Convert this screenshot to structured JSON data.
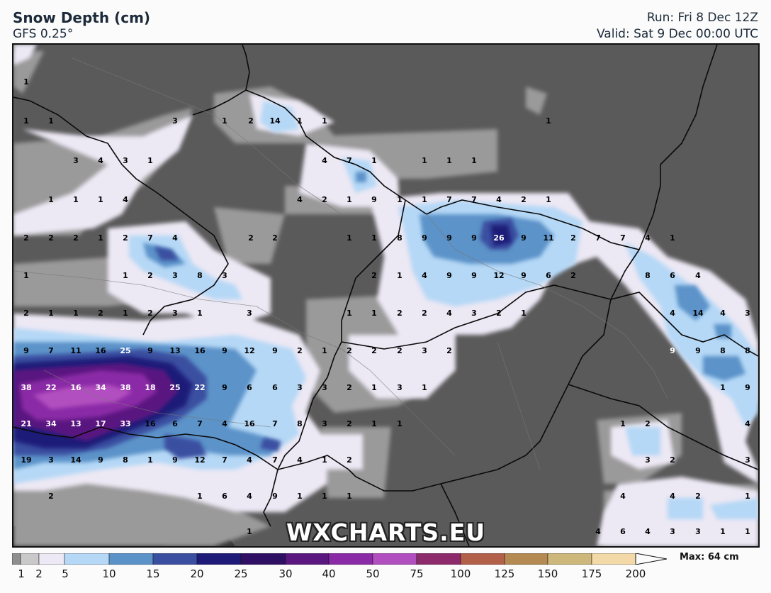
{
  "header": {
    "title": "Snow Depth (cm)",
    "model": "GFS 0.25°",
    "run": "Run: Fri 8 Dec 12Z",
    "valid": "Valid: Sat 9 Dec 00:00 UTC"
  },
  "watermark": "WXCHARTS.EU",
  "legend": {
    "max_label": "Max: 64 cm",
    "ticks": [
      "1",
      "2",
      "5",
      "10",
      "15",
      "20",
      "25",
      "30",
      "40",
      "50",
      "75",
      "100",
      "125",
      "150",
      "175",
      "200"
    ],
    "colors": [
      "#8f8f8f",
      "#c9c9c9",
      "#ece8f4",
      "#b5d8f6",
      "#5b93c9",
      "#3a4fa0",
      "#1d1a78",
      "#2e0f63",
      "#5a1780",
      "#8a2aa6",
      "#b24fc0",
      "#8d2a6b",
      "#b3604a",
      "#b58a52",
      "#cdb77a",
      "#f3d9a8"
    ]
  },
  "palette": {
    "land": "#5a5a5a",
    "sea": "#2b2b2b",
    "border": "#0a0a0a"
  },
  "map_labels": [
    {
      "t": "1",
      "lx": 35,
      "ly": 113
    },
    {
      "t": "1",
      "lx": 35,
      "ly": 168
    },
    {
      "t": "1",
      "lx": 70,
      "ly": 168
    },
    {
      "t": "3",
      "lx": 245,
      "ly": 168
    },
    {
      "t": "1",
      "lx": 315,
      "ly": 168
    },
    {
      "t": "2",
      "lx": 352,
      "ly": 168
    },
    {
      "t": "14",
      "lx": 386,
      "ly": 168
    },
    {
      "t": "1",
      "lx": 421,
      "ly": 168
    },
    {
      "t": "1",
      "lx": 456,
      "ly": 168
    },
    {
      "t": "1",
      "lx": 772,
      "ly": 168
    },
    {
      "t": "3",
      "lx": 105,
      "ly": 224
    },
    {
      "t": "4",
      "lx": 140,
      "ly": 224
    },
    {
      "t": "3",
      "lx": 175,
      "ly": 224
    },
    {
      "t": "1",
      "lx": 210,
      "ly": 224
    },
    {
      "t": "4",
      "lx": 456,
      "ly": 224
    },
    {
      "t": "7",
      "lx": 491,
      "ly": 224
    },
    {
      "t": "1",
      "lx": 526,
      "ly": 224
    },
    {
      "t": "1",
      "lx": 597,
      "ly": 224
    },
    {
      "t": "1",
      "lx": 632,
      "ly": 224
    },
    {
      "t": "1",
      "lx": 667,
      "ly": 224
    },
    {
      "t": "1",
      "lx": 70,
      "ly": 279
    },
    {
      "t": "1",
      "lx": 105,
      "ly": 279
    },
    {
      "t": "1",
      "lx": 140,
      "ly": 279
    },
    {
      "t": "4",
      "lx": 175,
      "ly": 279
    },
    {
      "t": "4",
      "lx": 421,
      "ly": 279
    },
    {
      "t": "2",
      "lx": 456,
      "ly": 279
    },
    {
      "t": "1",
      "lx": 491,
      "ly": 279
    },
    {
      "t": "9",
      "lx": 526,
      "ly": 279
    },
    {
      "t": "1",
      "lx": 562,
      "ly": 279
    },
    {
      "t": "1",
      "lx": 597,
      "ly": 279
    },
    {
      "t": "7",
      "lx": 632,
      "ly": 279
    },
    {
      "t": "7",
      "lx": 667,
      "ly": 279
    },
    {
      "t": "4",
      "lx": 702,
      "ly": 279
    },
    {
      "t": "2",
      "lx": 737,
      "ly": 279
    },
    {
      "t": "1",
      "lx": 772,
      "ly": 279
    },
    {
      "t": "2",
      "lx": 35,
      "ly": 333
    },
    {
      "t": "2",
      "lx": 70,
      "ly": 333
    },
    {
      "t": "2",
      "lx": 105,
      "ly": 333
    },
    {
      "t": "1",
      "lx": 140,
      "ly": 333
    },
    {
      "t": "2",
      "lx": 175,
      "ly": 333
    },
    {
      "t": "7",
      "lx": 210,
      "ly": 333
    },
    {
      "t": "4",
      "lx": 245,
      "ly": 333
    },
    {
      "t": "2",
      "lx": 352,
      "ly": 333
    },
    {
      "t": "2",
      "lx": 386,
      "ly": 333
    },
    {
      "t": "1",
      "lx": 491,
      "ly": 333
    },
    {
      "t": "1",
      "lx": 526,
      "ly": 333
    },
    {
      "t": "8",
      "lx": 562,
      "ly": 333
    },
    {
      "t": "9",
      "lx": 597,
      "ly": 333
    },
    {
      "t": "9",
      "lx": 632,
      "ly": 333
    },
    {
      "t": "9",
      "lx": 667,
      "ly": 333
    },
    {
      "t": "26",
      "lx": 702,
      "ly": 333,
      "w": 1
    },
    {
      "t": "9",
      "lx": 737,
      "ly": 333
    },
    {
      "t": "11",
      "lx": 772,
      "ly": 333
    },
    {
      "t": "2",
      "lx": 807,
      "ly": 333
    },
    {
      "t": "7",
      "lx": 842,
      "ly": 333
    },
    {
      "t": "7",
      "lx": 877,
      "ly": 333
    },
    {
      "t": "4",
      "lx": 912,
      "ly": 333
    },
    {
      "t": "1",
      "lx": 947,
      "ly": 333
    },
    {
      "t": "1",
      "lx": 35,
      "ly": 386
    },
    {
      "t": "1",
      "lx": 175,
      "ly": 386
    },
    {
      "t": "2",
      "lx": 210,
      "ly": 386
    },
    {
      "t": "3",
      "lx": 245,
      "ly": 386
    },
    {
      "t": "8",
      "lx": 280,
      "ly": 386
    },
    {
      "t": "3",
      "lx": 315,
      "ly": 386
    },
    {
      "t": "2",
      "lx": 526,
      "ly": 386
    },
    {
      "t": "1",
      "lx": 562,
      "ly": 386
    },
    {
      "t": "4",
      "lx": 597,
      "ly": 386
    },
    {
      "t": "9",
      "lx": 632,
      "ly": 386
    },
    {
      "t": "9",
      "lx": 667,
      "ly": 386
    },
    {
      "t": "12",
      "lx": 702,
      "ly": 386
    },
    {
      "t": "9",
      "lx": 737,
      "ly": 386
    },
    {
      "t": "6",
      "lx": 772,
      "ly": 386
    },
    {
      "t": "2",
      "lx": 807,
      "ly": 386
    },
    {
      "t": "8",
      "lx": 912,
      "ly": 386
    },
    {
      "t": "6",
      "lx": 947,
      "ly": 386
    },
    {
      "t": "4",
      "lx": 983,
      "ly": 386
    },
    {
      "t": "2",
      "lx": 35,
      "ly": 439
    },
    {
      "t": "1",
      "lx": 70,
      "ly": 439
    },
    {
      "t": "1",
      "lx": 105,
      "ly": 439
    },
    {
      "t": "2",
      "lx": 140,
      "ly": 439
    },
    {
      "t": "1",
      "lx": 175,
      "ly": 439
    },
    {
      "t": "2",
      "lx": 210,
      "ly": 439
    },
    {
      "t": "3",
      "lx": 245,
      "ly": 439
    },
    {
      "t": "1",
      "lx": 280,
      "ly": 439
    },
    {
      "t": "3",
      "lx": 350,
      "ly": 439
    },
    {
      "t": "1",
      "lx": 491,
      "ly": 439
    },
    {
      "t": "1",
      "lx": 526,
      "ly": 439
    },
    {
      "t": "2",
      "lx": 562,
      "ly": 439
    },
    {
      "t": "2",
      "lx": 597,
      "ly": 439
    },
    {
      "t": "4",
      "lx": 632,
      "ly": 439
    },
    {
      "t": "3",
      "lx": 667,
      "ly": 439
    },
    {
      "t": "2",
      "lx": 702,
      "ly": 439
    },
    {
      "t": "1",
      "lx": 737,
      "ly": 439
    },
    {
      "t": "4",
      "lx": 947,
      "ly": 439
    },
    {
      "t": "14",
      "lx": 983,
      "ly": 439
    },
    {
      "t": "4",
      "lx": 1018,
      "ly": 439
    },
    {
      "t": "3",
      "lx": 1053,
      "ly": 439
    },
    {
      "t": "9",
      "lx": 35,
      "ly": 492
    },
    {
      "t": "7",
      "lx": 70,
      "ly": 492
    },
    {
      "t": "11",
      "lx": 105,
      "ly": 492
    },
    {
      "t": "16",
      "lx": 140,
      "ly": 492
    },
    {
      "t": "25",
      "lx": 175,
      "ly": 492,
      "w": 1
    },
    {
      "t": "9",
      "lx": 210,
      "ly": 492
    },
    {
      "t": "13",
      "lx": 245,
      "ly": 492
    },
    {
      "t": "16",
      "lx": 280,
      "ly": 492
    },
    {
      "t": "9",
      "lx": 315,
      "ly": 492
    },
    {
      "t": "12",
      "lx": 350,
      "ly": 492
    },
    {
      "t": "9",
      "lx": 386,
      "ly": 492
    },
    {
      "t": "2",
      "lx": 421,
      "ly": 492
    },
    {
      "t": "1",
      "lx": 456,
      "ly": 492
    },
    {
      "t": "2",
      "lx": 491,
      "ly": 492
    },
    {
      "t": "2",
      "lx": 526,
      "ly": 492
    },
    {
      "t": "2",
      "lx": 562,
      "ly": 492
    },
    {
      "t": "3",
      "lx": 597,
      "ly": 492
    },
    {
      "t": "2",
      "lx": 632,
      "ly": 492
    },
    {
      "t": "9",
      "lx": 947,
      "ly": 492,
      "w": 1
    },
    {
      "t": "9",
      "lx": 983,
      "ly": 492
    },
    {
      "t": "8",
      "lx": 1018,
      "ly": 492
    },
    {
      "t": "8",
      "lx": 1053,
      "ly": 492
    },
    {
      "t": "38",
      "lx": 35,
      "ly": 544,
      "w": 1
    },
    {
      "t": "22",
      "lx": 70,
      "ly": 544,
      "w": 1
    },
    {
      "t": "16",
      "lx": 105,
      "ly": 544,
      "w": 1
    },
    {
      "t": "34",
      "lx": 140,
      "ly": 544,
      "w": 1
    },
    {
      "t": "38",
      "lx": 175,
      "ly": 544,
      "w": 1
    },
    {
      "t": "18",
      "lx": 210,
      "ly": 544,
      "w": 1
    },
    {
      "t": "25",
      "lx": 245,
      "ly": 544,
      "w": 1
    },
    {
      "t": "22",
      "lx": 280,
      "ly": 544,
      "w": 1
    },
    {
      "t": "9",
      "lx": 315,
      "ly": 544
    },
    {
      "t": "6",
      "lx": 350,
      "ly": 544
    },
    {
      "t": "6",
      "lx": 386,
      "ly": 544
    },
    {
      "t": "3",
      "lx": 421,
      "ly": 544
    },
    {
      "t": "3",
      "lx": 456,
      "ly": 544
    },
    {
      "t": "2",
      "lx": 491,
      "ly": 544
    },
    {
      "t": "1",
      "lx": 526,
      "ly": 544
    },
    {
      "t": "3",
      "lx": 562,
      "ly": 544
    },
    {
      "t": "1",
      "lx": 597,
      "ly": 544
    },
    {
      "t": "1",
      "lx": 1018,
      "ly": 544
    },
    {
      "t": "9",
      "lx": 1053,
      "ly": 544
    },
    {
      "t": "21",
      "lx": 35,
      "ly": 595,
      "w": 1
    },
    {
      "t": "34",
      "lx": 70,
      "ly": 595,
      "w": 1
    },
    {
      "t": "13",
      "lx": 105,
      "ly": 595,
      "w": 1
    },
    {
      "t": "17",
      "lx": 140,
      "ly": 595,
      "w": 1
    },
    {
      "t": "33",
      "lx": 175,
      "ly": 595,
      "w": 1
    },
    {
      "t": "16",
      "lx": 210,
      "ly": 595
    },
    {
      "t": "6",
      "lx": 245,
      "ly": 595
    },
    {
      "t": "7",
      "lx": 280,
      "ly": 595
    },
    {
      "t": "4",
      "lx": 315,
      "ly": 595
    },
    {
      "t": "16",
      "lx": 350,
      "ly": 595
    },
    {
      "t": "7",
      "lx": 386,
      "ly": 595
    },
    {
      "t": "8",
      "lx": 421,
      "ly": 595
    },
    {
      "t": "3",
      "lx": 456,
      "ly": 595
    },
    {
      "t": "2",
      "lx": 491,
      "ly": 595
    },
    {
      "t": "1",
      "lx": 526,
      "ly": 595
    },
    {
      "t": "1",
      "lx": 562,
      "ly": 595
    },
    {
      "t": "1",
      "lx": 877,
      "ly": 595
    },
    {
      "t": "2",
      "lx": 912,
      "ly": 595
    },
    {
      "t": "4",
      "lx": 1053,
      "ly": 595
    },
    {
      "t": "19",
      "lx": 35,
      "ly": 646
    },
    {
      "t": "3",
      "lx": 70,
      "ly": 646
    },
    {
      "t": "14",
      "lx": 105,
      "ly": 646
    },
    {
      "t": "9",
      "lx": 140,
      "ly": 646
    },
    {
      "t": "8",
      "lx": 175,
      "ly": 646
    },
    {
      "t": "1",
      "lx": 210,
      "ly": 646
    },
    {
      "t": "9",
      "lx": 245,
      "ly": 646
    },
    {
      "t": "12",
      "lx": 280,
      "ly": 646
    },
    {
      "t": "7",
      "lx": 315,
      "ly": 646
    },
    {
      "t": "4",
      "lx": 350,
      "ly": 646
    },
    {
      "t": "7",
      "lx": 386,
      "ly": 646
    },
    {
      "t": "4",
      "lx": 421,
      "ly": 646
    },
    {
      "t": "1",
      "lx": 456,
      "ly": 646
    },
    {
      "t": "2",
      "lx": 491,
      "ly": 646
    },
    {
      "t": "3",
      "lx": 912,
      "ly": 646
    },
    {
      "t": "2",
      "lx": 947,
      "ly": 646
    },
    {
      "t": "3",
      "lx": 1053,
      "ly": 646
    },
    {
      "t": "2",
      "lx": 70,
      "ly": 697
    },
    {
      "t": "1",
      "lx": 280,
      "ly": 697
    },
    {
      "t": "6",
      "lx": 315,
      "ly": 697
    },
    {
      "t": "4",
      "lx": 350,
      "ly": 697
    },
    {
      "t": "9",
      "lx": 386,
      "ly": 697
    },
    {
      "t": "1",
      "lx": 421,
      "ly": 697
    },
    {
      "t": "1",
      "lx": 456,
      "ly": 697
    },
    {
      "t": "1",
      "lx": 491,
      "ly": 697
    },
    {
      "t": "4",
      "lx": 877,
      "ly": 697
    },
    {
      "t": "4",
      "lx": 947,
      "ly": 697
    },
    {
      "t": "2",
      "lx": 983,
      "ly": 697
    },
    {
      "t": "1",
      "lx": 1053,
      "ly": 697
    },
    {
      "t": "1",
      "lx": 350,
      "ly": 747
    },
    {
      "t": "4",
      "lx": 842,
      "ly": 747
    },
    {
      "t": "6",
      "lx": 877,
      "ly": 747
    },
    {
      "t": "4",
      "lx": 912,
      "ly": 747
    },
    {
      "t": "3",
      "lx": 947,
      "ly": 747
    },
    {
      "t": "3",
      "lx": 983,
      "ly": 747
    },
    {
      "t": "1",
      "lx": 1018,
      "ly": 747
    },
    {
      "t": "1",
      "lx": 1053,
      "ly": 747
    }
  ]
}
